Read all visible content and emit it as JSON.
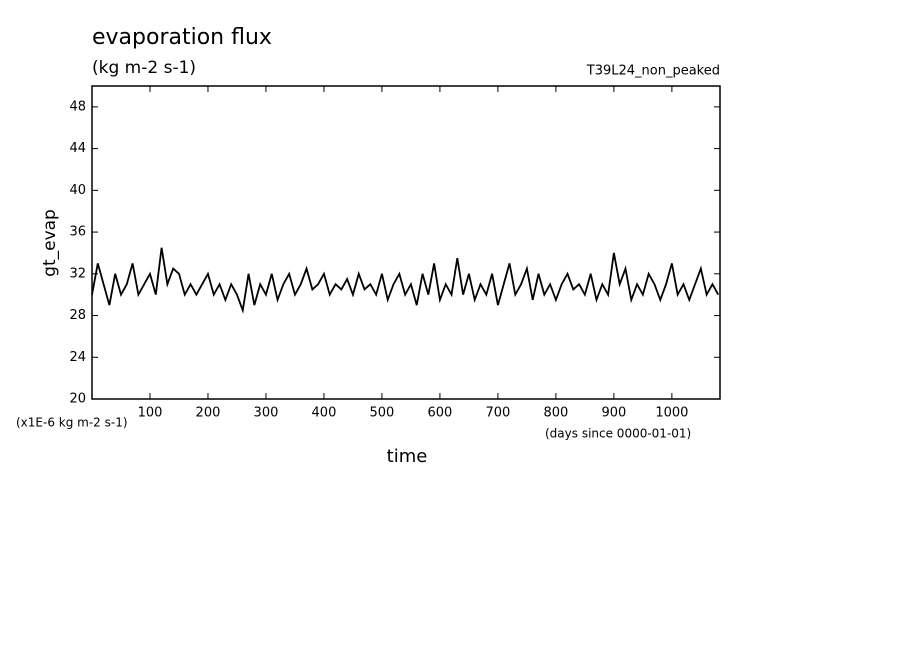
{
  "chart_data": {
    "type": "line",
    "title": "evaporation flux",
    "subtitle": "(kg m-2 s-1)",
    "annotation": "T39L24_non_peaked",
    "y_label": "gt_evap",
    "x_label": "time",
    "y_unit_note": "(x1E-6 kg m-2 s-1)",
    "x_unit_note": "(days since 0000-01-01)",
    "x": [
      0,
      10,
      20,
      30,
      40,
      50,
      60,
      70,
      80,
      90,
      100,
      110,
      120,
      130,
      140,
      150,
      160,
      170,
      180,
      190,
      200,
      210,
      220,
      230,
      240,
      250,
      260,
      270,
      280,
      290,
      300,
      310,
      320,
      330,
      340,
      350,
      360,
      370,
      380,
      390,
      400,
      410,
      420,
      430,
      440,
      450,
      460,
      470,
      480,
      490,
      500,
      510,
      520,
      530,
      540,
      550,
      560,
      570,
      580,
      590,
      600,
      610,
      620,
      630,
      640,
      650,
      660,
      670,
      680,
      690,
      700,
      710,
      720,
      730,
      740,
      750,
      760,
      770,
      780,
      790,
      800,
      810,
      820,
      830,
      840,
      850,
      860,
      870,
      880,
      890,
      900,
      910,
      920,
      930,
      940,
      950,
      960,
      970,
      980,
      990,
      1000,
      1010,
      1020,
      1030,
      1040,
      1050,
      1060,
      1070,
      1080
    ],
    "series": [
      {
        "color": "#000000",
        "values": [
          30,
          33,
          31,
          29,
          32,
          30,
          31,
          33,
          30,
          31,
          32,
          30,
          34.5,
          31,
          32.5,
          32,
          30,
          31,
          30,
          31,
          32,
          30,
          31,
          29.5,
          31,
          30,
          28.5,
          32,
          29,
          31,
          30,
          32,
          29.5,
          31,
          32,
          30,
          31,
          32.5,
          30.5,
          31,
          32,
          30,
          31,
          30.5,
          31.5,
          30,
          32,
          30.5,
          31,
          30,
          32,
          29.5,
          31,
          32,
          30,
          31,
          29,
          32,
          30,
          33,
          29.5,
          31,
          30,
          33.5,
          30,
          32,
          29.5,
          31,
          30,
          32,
          29,
          31,
          33,
          30,
          31,
          32.5,
          29.5,
          32,
          30,
          31,
          29.5,
          31,
          32,
          30.5,
          31,
          30,
          32,
          29.5,
          31,
          30,
          34,
          31,
          32.5,
          29.5,
          31,
          30,
          32,
          31,
          29.5,
          31,
          33,
          30,
          31,
          29.5,
          31,
          32.5,
          30,
          31,
          30
        ]
      }
    ],
    "xlim": [
      0,
      1083
    ],
    "ylim": [
      20,
      50
    ],
    "xticks": [
      100,
      200,
      300,
      400,
      500,
      600,
      700,
      800,
      900,
      1000
    ],
    "yticks": [
      20,
      24,
      28,
      32,
      36,
      40,
      44,
      48
    ]
  }
}
